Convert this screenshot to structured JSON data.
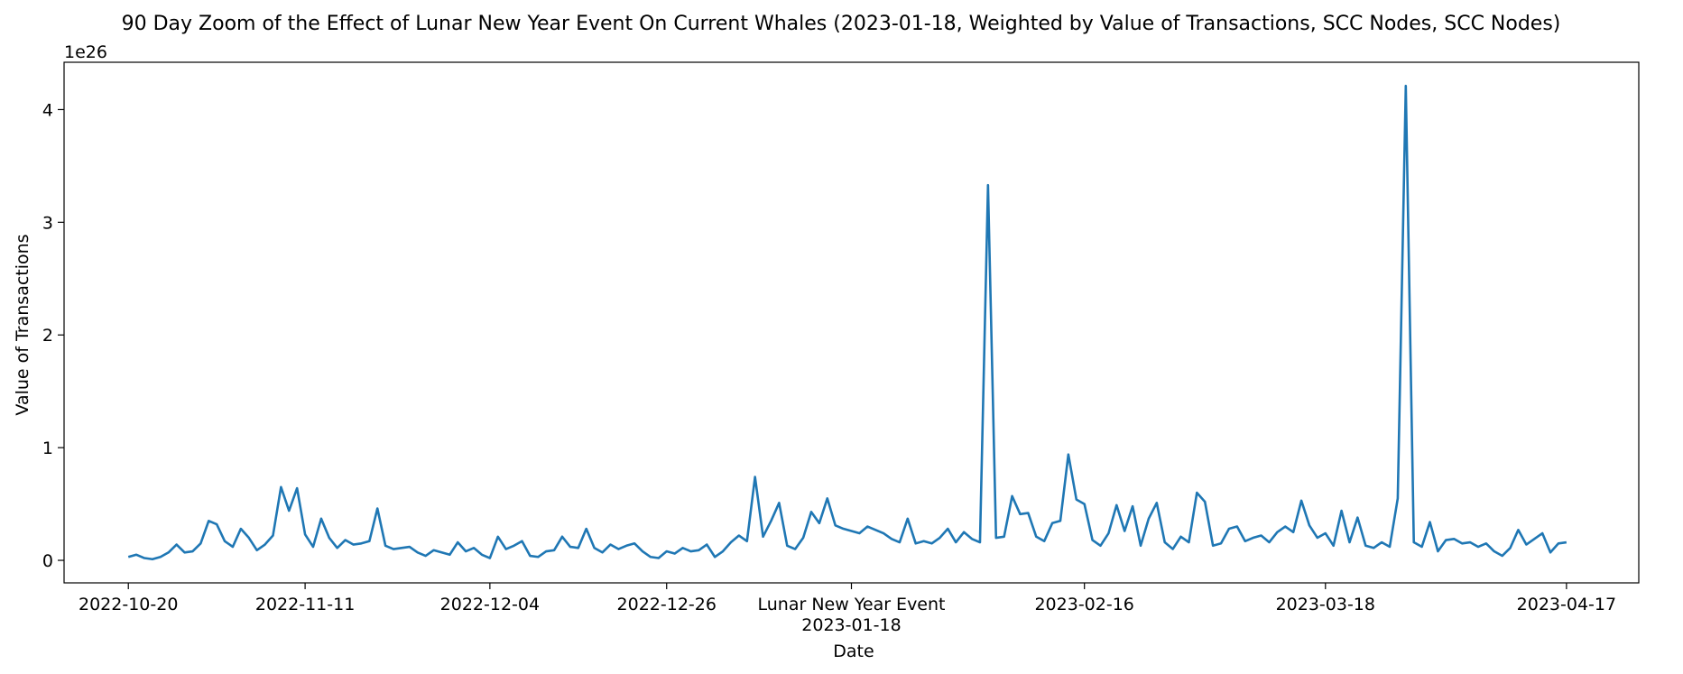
{
  "chart_data": {
    "type": "line",
    "title": "90 Day Zoom of the Effect of Lunar New Year Event On Current Whales (2023-01-18, Weighted by Value of Transactions, SCC Nodes, SCC Nodes)",
    "xlabel": "Date",
    "ylabel": "Value of Transactions",
    "y_offset_label": "1e26",
    "ylim": [
      -0.2,
      4.42
    ],
    "xlim_dates": [
      "2022-10-12",
      "2023-04-26"
    ],
    "grid": false,
    "line_color": "#1f77b4",
    "x_ticks": [
      {
        "date": "2022-10-20",
        "label": "2022-10-20"
      },
      {
        "date": "2022-11-11",
        "label": "2022-11-11"
      },
      {
        "date": "2022-12-04",
        "label": "2022-12-04"
      },
      {
        "date": "2022-12-26",
        "label": "2022-12-26"
      },
      {
        "date": "2023-01-18",
        "label": "Lunar New Year Event",
        "label2": "2023-01-18"
      },
      {
        "date": "2023-02-16",
        "label": "2023-02-16"
      },
      {
        "date": "2023-03-18",
        "label": "2023-03-18"
      },
      {
        "date": "2023-04-17",
        "label": "2023-04-17"
      }
    ],
    "y_ticks": [
      {
        "value": 0,
        "label": "0"
      },
      {
        "value": 1,
        "label": "1"
      },
      {
        "value": 2,
        "label": "2"
      },
      {
        "value": 3,
        "label": "3"
      },
      {
        "value": 4,
        "label": "4"
      }
    ],
    "series": [
      {
        "start_date": "2022-10-20",
        "values": [
          0.03,
          0.05,
          0.02,
          0.01,
          0.03,
          0.07,
          0.14,
          0.07,
          0.08,
          0.15,
          0.35,
          0.32,
          0.17,
          0.12,
          0.28,
          0.2,
          0.09,
          0.14,
          0.22,
          0.65,
          0.44,
          0.64,
          0.23,
          0.12,
          0.37,
          0.2,
          0.11,
          0.18,
          0.14,
          0.15,
          0.17,
          0.46,
          0.13,
          0.1,
          0.11,
          0.12,
          0.07,
          0.04,
          0.09,
          0.07,
          0.05,
          0.16,
          0.08,
          0.11,
          0.05,
          0.02,
          0.21,
          0.1,
          0.13,
          0.17,
          0.04,
          0.03,
          0.08,
          0.09,
          0.21,
          0.12,
          0.11,
          0.28,
          0.11,
          0.07,
          0.14,
          0.1,
          0.13,
          0.15,
          0.08,
          0.03,
          0.02,
          0.08,
          0.06,
          0.11,
          0.08,
          0.09,
          0.14,
          0.03,
          0.08,
          0.16,
          0.22,
          0.17,
          0.74,
          0.21,
          0.35,
          0.51,
          0.13,
          0.1,
          0.2,
          0.43,
          0.33,
          0.55,
          0.31,
          0.28,
          0.26,
          0.24,
          0.3,
          0.27,
          0.24,
          0.19,
          0.16,
          0.37,
          0.15,
          0.17,
          0.15,
          0.2,
          0.28,
          0.16,
          0.25,
          0.19,
          0.16,
          3.33,
          0.2,
          0.21,
          0.57,
          0.41,
          0.42,
          0.21,
          0.17,
          0.33,
          0.35,
          0.94,
          0.54,
          0.5,
          0.18,
          0.13,
          0.24,
          0.49,
          0.26,
          0.48,
          0.13,
          0.37,
          0.51,
          0.16,
          0.1,
          0.21,
          0.16,
          0.6,
          0.52,
          0.13,
          0.15,
          0.28,
          0.3,
          0.17,
          0.2,
          0.22,
          0.16,
          0.25,
          0.3,
          0.25,
          0.53,
          0.31,
          0.2,
          0.24,
          0.13,
          0.44,
          0.16,
          0.38,
          0.13,
          0.11,
          0.16,
          0.12,
          0.55,
          4.21,
          0.16,
          0.12,
          0.34,
          0.08,
          0.18,
          0.19,
          0.15,
          0.16,
          0.12,
          0.15,
          0.08,
          0.04,
          0.11,
          0.27,
          0.14,
          0.19,
          0.24,
          0.07,
          0.15,
          0.16
        ]
      }
    ]
  }
}
